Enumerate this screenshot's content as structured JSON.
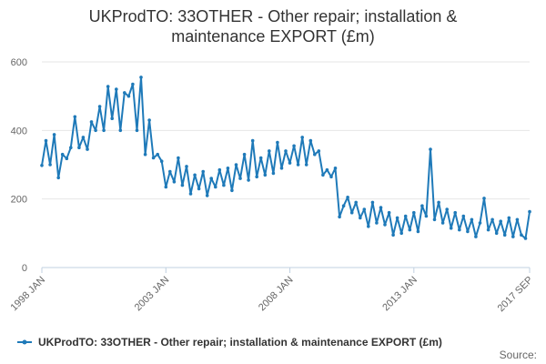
{
  "chart_data": {
    "type": "line",
    "title_lines": [
      "UKProdTO: 33OTHER - Other repair; installation &",
      "maintenance EXPORT (£m)"
    ],
    "ylim": [
      0,
      600
    ],
    "y_ticks": [
      0,
      200,
      400,
      600
    ],
    "x_range": [
      "1998 JAN",
      "2017 SEP"
    ],
    "x_ticks": [
      {
        "label": "1998 JAN",
        "x": "1998-01"
      },
      {
        "label": "2003 JAN",
        "x": "2003-01"
      },
      {
        "label": "2008 JAN",
        "x": "2008-01"
      },
      {
        "label": "2013 JAN",
        "x": "2013-01"
      },
      {
        "label": "2017 SEP",
        "x": "2017-09"
      }
    ],
    "grid": "horizontal",
    "legend_position": "bottom",
    "colors": {
      "series": "#1f7ab9",
      "grid": "#e6e6e6",
      "axis": "#c0d0e0"
    },
    "series": [
      {
        "name": "UKProdTO: 33OTHER - Other repair; installation & maintenance EXPORT (£m)",
        "values": [
          {
            "x": "1998-01",
            "y": 298
          },
          {
            "x": "1998-03",
            "y": 370
          },
          {
            "x": "1998-05",
            "y": 300
          },
          {
            "x": "1998-07",
            "y": 388
          },
          {
            "x": "1998-09",
            "y": 262
          },
          {
            "x": "1998-11",
            "y": 330
          },
          {
            "x": "1999-01",
            "y": 318
          },
          {
            "x": "1999-03",
            "y": 350
          },
          {
            "x": "1999-05",
            "y": 440
          },
          {
            "x": "1999-07",
            "y": 350
          },
          {
            "x": "1999-09",
            "y": 380
          },
          {
            "x": "1999-11",
            "y": 345
          },
          {
            "x": "2000-01",
            "y": 425
          },
          {
            "x": "2000-03",
            "y": 400
          },
          {
            "x": "2000-05",
            "y": 470
          },
          {
            "x": "2000-07",
            "y": 400
          },
          {
            "x": "2000-09",
            "y": 528
          },
          {
            "x": "2000-11",
            "y": 435
          },
          {
            "x": "2001-01",
            "y": 520
          },
          {
            "x": "2001-03",
            "y": 400
          },
          {
            "x": "2001-05",
            "y": 510
          },
          {
            "x": "2001-07",
            "y": 500
          },
          {
            "x": "2001-09",
            "y": 535
          },
          {
            "x": "2001-11",
            "y": 400
          },
          {
            "x": "2002-01",
            "y": 555
          },
          {
            "x": "2002-03",
            "y": 330
          },
          {
            "x": "2002-05",
            "y": 430
          },
          {
            "x": "2002-07",
            "y": 320
          },
          {
            "x": "2002-09",
            "y": 330
          },
          {
            "x": "2002-11",
            "y": 310
          },
          {
            "x": "2003-01",
            "y": 235
          },
          {
            "x": "2003-03",
            "y": 280
          },
          {
            "x": "2003-05",
            "y": 250
          },
          {
            "x": "2003-07",
            "y": 320
          },
          {
            "x": "2003-09",
            "y": 240
          },
          {
            "x": "2003-11",
            "y": 295
          },
          {
            "x": "2004-01",
            "y": 215
          },
          {
            "x": "2004-03",
            "y": 270
          },
          {
            "x": "2004-05",
            "y": 230
          },
          {
            "x": "2004-07",
            "y": 280
          },
          {
            "x": "2004-09",
            "y": 210
          },
          {
            "x": "2004-11",
            "y": 260
          },
          {
            "x": "2005-01",
            "y": 235
          },
          {
            "x": "2005-03",
            "y": 285
          },
          {
            "x": "2005-05",
            "y": 240
          },
          {
            "x": "2005-07",
            "y": 290
          },
          {
            "x": "2005-09",
            "y": 225
          },
          {
            "x": "2005-11",
            "y": 300
          },
          {
            "x": "2006-01",
            "y": 260
          },
          {
            "x": "2006-03",
            "y": 330
          },
          {
            "x": "2006-05",
            "y": 255
          },
          {
            "x": "2006-07",
            "y": 370
          },
          {
            "x": "2006-09",
            "y": 265
          },
          {
            "x": "2006-11",
            "y": 320
          },
          {
            "x": "2007-01",
            "y": 270
          },
          {
            "x": "2007-03",
            "y": 340
          },
          {
            "x": "2007-05",
            "y": 275
          },
          {
            "x": "2007-07",
            "y": 365
          },
          {
            "x": "2007-09",
            "y": 290
          },
          {
            "x": "2007-11",
            "y": 340
          },
          {
            "x": "2008-01",
            "y": 305
          },
          {
            "x": "2008-03",
            "y": 355
          },
          {
            "x": "2008-05",
            "y": 300
          },
          {
            "x": "2008-07",
            "y": 380
          },
          {
            "x": "2008-09",
            "y": 300
          },
          {
            "x": "2008-11",
            "y": 370
          },
          {
            "x": "2009-01",
            "y": 330
          },
          {
            "x": "2009-03",
            "y": 340
          },
          {
            "x": "2009-05",
            "y": 270
          },
          {
            "x": "2009-07",
            "y": 285
          },
          {
            "x": "2009-09",
            "y": 265
          },
          {
            "x": "2009-11",
            "y": 290
          },
          {
            "x": "2010-01",
            "y": 148
          },
          {
            "x": "2010-03",
            "y": 180
          },
          {
            "x": "2010-05",
            "y": 205
          },
          {
            "x": "2010-07",
            "y": 160
          },
          {
            "x": "2010-09",
            "y": 190
          },
          {
            "x": "2010-11",
            "y": 145
          },
          {
            "x": "2011-01",
            "y": 170
          },
          {
            "x": "2011-03",
            "y": 120
          },
          {
            "x": "2011-05",
            "y": 190
          },
          {
            "x": "2011-07",
            "y": 130
          },
          {
            "x": "2011-09",
            "y": 175
          },
          {
            "x": "2011-11",
            "y": 125
          },
          {
            "x": "2012-01",
            "y": 160
          },
          {
            "x": "2012-03",
            "y": 95
          },
          {
            "x": "2012-05",
            "y": 145
          },
          {
            "x": "2012-07",
            "y": 100
          },
          {
            "x": "2012-09",
            "y": 150
          },
          {
            "x": "2012-11",
            "y": 110
          },
          {
            "x": "2013-01",
            "y": 160
          },
          {
            "x": "2013-03",
            "y": 105
          },
          {
            "x": "2013-05",
            "y": 180
          },
          {
            "x": "2013-07",
            "y": 150
          },
          {
            "x": "2013-09",
            "y": 345
          },
          {
            "x": "2013-11",
            "y": 140
          },
          {
            "x": "2014-01",
            "y": 190
          },
          {
            "x": "2014-03",
            "y": 130
          },
          {
            "x": "2014-05",
            "y": 170
          },
          {
            "x": "2014-07",
            "y": 115
          },
          {
            "x": "2014-09",
            "y": 160
          },
          {
            "x": "2014-11",
            "y": 110
          },
          {
            "x": "2015-01",
            "y": 150
          },
          {
            "x": "2015-03",
            "y": 105
          },
          {
            "x": "2015-05",
            "y": 140
          },
          {
            "x": "2015-07",
            "y": 90
          },
          {
            "x": "2015-09",
            "y": 130
          },
          {
            "x": "2015-11",
            "y": 202
          },
          {
            "x": "2016-01",
            "y": 110
          },
          {
            "x": "2016-03",
            "y": 140
          },
          {
            "x": "2016-05",
            "y": 100
          },
          {
            "x": "2016-07",
            "y": 135
          },
          {
            "x": "2016-09",
            "y": 95
          },
          {
            "x": "2016-11",
            "y": 145
          },
          {
            "x": "2017-01",
            "y": 90
          },
          {
            "x": "2017-03",
            "y": 140
          },
          {
            "x": "2017-05",
            "y": 95
          },
          {
            "x": "2017-07",
            "y": 85
          },
          {
            "x": "2017-09",
            "y": 163
          }
        ]
      }
    ],
    "source_label": "Source:"
  }
}
